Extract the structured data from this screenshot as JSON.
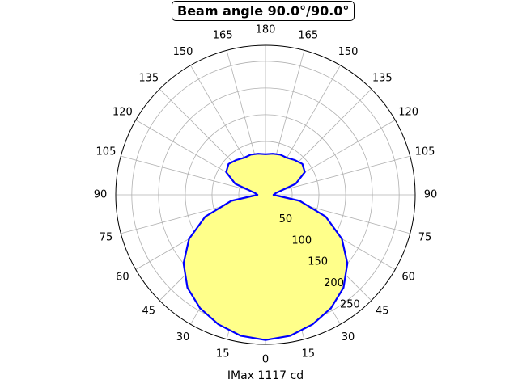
{
  "chart_data": {
    "type": "polar",
    "title": "Beam angle 90.0°/90.0°",
    "xlabel": "IMax 1117 cd",
    "angle_labels": [
      "0",
      "15",
      "30",
      "45",
      "60",
      "75",
      "90",
      "105",
      "120",
      "135",
      "150",
      "165",
      "180",
      "165",
      "150",
      "135",
      "120",
      "105",
      "90",
      "75",
      "60",
      "45",
      "30",
      "15"
    ],
    "radial_ticks": [
      "50",
      "100",
      "150",
      "200",
      "250"
    ],
    "rlim": [
      0,
      280
    ],
    "grid": true,
    "series": [
      {
        "angles": [
          0,
          10,
          20,
          30,
          40,
          50,
          60,
          70,
          80,
          90,
          100,
          110,
          120,
          130,
          140,
          150,
          160,
          170,
          180
        ],
        "values": [
          272,
          268,
          258,
          245,
          227,
          200,
          165,
          120,
          65,
          15,
          20,
          60,
          85,
          90,
          85,
          80,
          80,
          78,
          76
        ]
      }
    ],
    "colors": {
      "line": "#0000ff",
      "fill": "#ffff8a",
      "grid": "#b0b0b0"
    }
  }
}
